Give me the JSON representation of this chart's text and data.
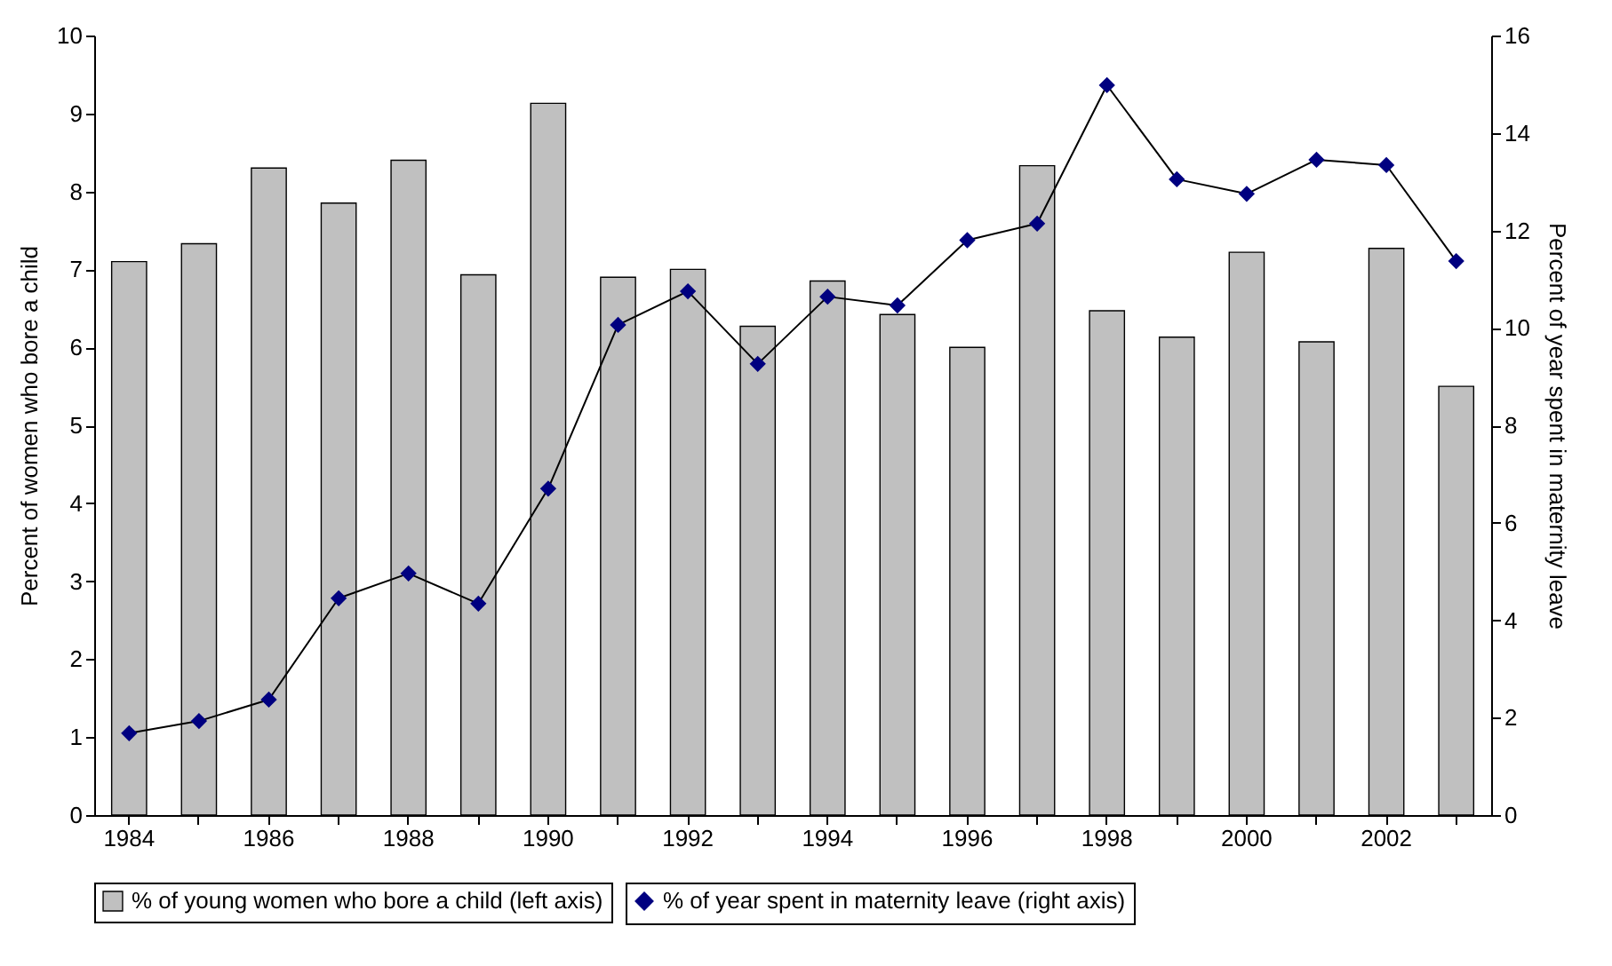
{
  "chart_data": {
    "type": "bar",
    "categories": [
      "1984",
      null,
      "1986",
      null,
      "1988",
      null,
      "1990",
      null,
      "1992",
      null,
      "1994",
      null,
      "1996",
      null,
      "1998",
      null,
      "2000",
      null,
      "2002",
      null
    ],
    "ylabel": "Percent of women who bore a child",
    "y2label": "Percent of year spent in maternity leave",
    "ylim": [
      0,
      10
    ],
    "yticks": [
      0,
      1,
      2,
      3,
      4,
      5,
      6,
      7,
      8,
      9,
      10
    ],
    "y2lim": [
      0,
      16
    ],
    "y2ticks": [
      0,
      2,
      4,
      6,
      8,
      10,
      12,
      14,
      16
    ],
    "legend": "bottom",
    "grid": false,
    "series": [
      {
        "name": "% of young women who bore a child (left axis)",
        "color": "#c0c0c0",
        "values": [
          7.1,
          7.33,
          8.3,
          7.85,
          8.4,
          6.93,
          9.13,
          6.9,
          7.0,
          6.27,
          6.85,
          6.42,
          6.0,
          8.33,
          6.47,
          6.13,
          7.22,
          6.07,
          7.27,
          5.5
        ]
      },
      {
        "name": "% of year spent in maternity leave (right axis)",
        "type": "line",
        "axis": "y2",
        "color": "#000080",
        "marker": "diamond",
        "values": [
          1.68,
          1.93,
          2.37,
          4.45,
          4.96,
          4.34,
          6.7,
          10.06,
          10.75,
          9.26,
          10.64,
          10.46,
          11.8,
          12.14,
          14.98,
          13.05,
          12.75,
          13.45,
          13.34,
          11.37
        ]
      }
    ]
  }
}
